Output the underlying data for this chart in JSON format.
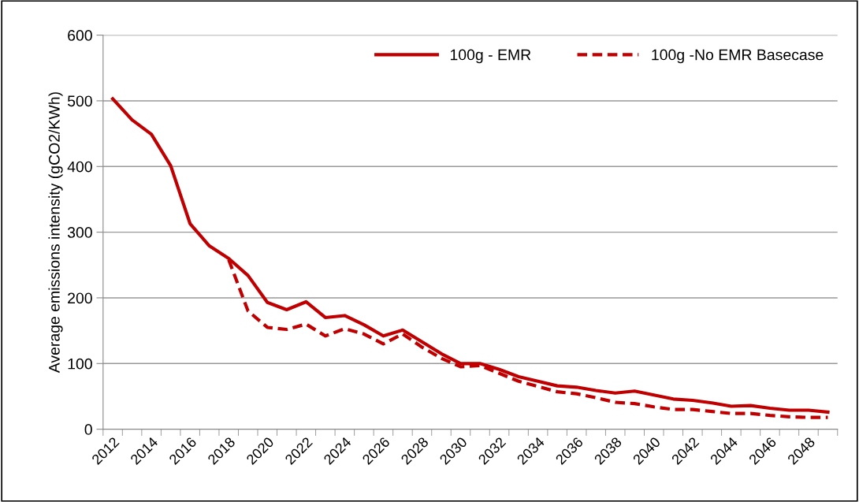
{
  "chart_data": {
    "type": "line",
    "ylabel": "Average emissions intensity (gCO2/KWh)",
    "categories": [
      "2012",
      null,
      "2014",
      null,
      "2016",
      null,
      "2018",
      null,
      "2020",
      null,
      "2022",
      null,
      "2024",
      null,
      "2026",
      null,
      "2028",
      null,
      "2030",
      null,
      "2032",
      null,
      "2034",
      null,
      "2036",
      null,
      "2038",
      null,
      "2040",
      null,
      "2042",
      null,
      "2044",
      null,
      "2046",
      null,
      "2048",
      null
    ],
    "series": [
      {
        "name": "100g - EMR",
        "color": "#c00000",
        "line_style": "solid",
        "values": [
          503,
          471,
          449,
          401,
          313,
          279,
          260,
          234,
          193,
          182,
          194,
          170,
          173,
          159,
          142,
          151,
          133,
          115,
          100,
          100,
          91,
          80,
          73,
          66,
          64,
          59,
          55,
          58,
          52,
          46,
          44,
          40,
          35,
          36,
          32,
          29,
          29,
          26
        ]
      },
      {
        "name": "100g -No EMR Basecase",
        "color": "#c00000",
        "line_style": "dashed",
        "values": [
          null,
          null,
          null,
          null,
          null,
          null,
          258,
          180,
          155,
          152,
          160,
          142,
          153,
          145,
          130,
          145,
          125,
          108,
          95,
          97,
          85,
          73,
          65,
          57,
          54,
          48,
          41,
          39,
          34,
          30,
          30,
          27,
          24,
          24,
          21,
          19,
          18,
          18
        ]
      }
    ],
    "ylim": [
      0,
      600
    ],
    "yticks": [
      0,
      100,
      200,
      300,
      400,
      500,
      600
    ],
    "grid": "y",
    "legend": "top right",
    "marker": "none"
  }
}
